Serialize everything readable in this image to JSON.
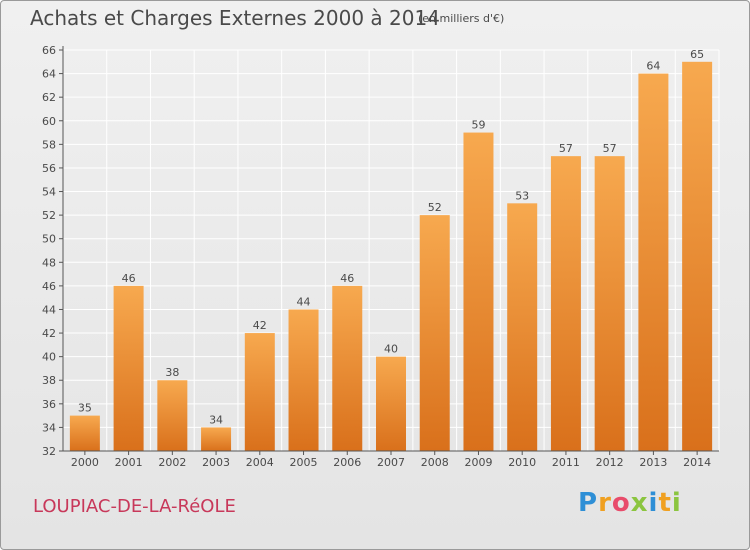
{
  "header": {
    "title": "Achats et Charges Externes 2000 à 2014",
    "subtitle": "(en milliers d'€)"
  },
  "footer": {
    "commune": "LOUPIAC-DE-LA-RéOLE",
    "logo": "Proxiti"
  },
  "colors": {
    "bar_top": "#f7a94f",
    "bar_bottom": "#d9701b",
    "grid": "#ffffff",
    "text": "#4a4a4a",
    "commune": "#c8385a"
  },
  "chart_data": {
    "type": "bar",
    "categories": [
      "2000",
      "2001",
      "2002",
      "2003",
      "2004",
      "2005",
      "2006",
      "2007",
      "2008",
      "2009",
      "2010",
      "2011",
      "2012",
      "2013",
      "2014"
    ],
    "values": [
      35,
      46,
      38,
      34,
      42,
      44,
      46,
      40,
      52,
      59,
      53,
      57,
      57,
      64,
      65
    ],
    "ylim": [
      32,
      66
    ],
    "yticks": [
      32,
      34,
      36,
      38,
      40,
      42,
      44,
      46,
      48,
      50,
      52,
      54,
      56,
      58,
      60,
      62,
      64,
      66
    ],
    "grid": true
  }
}
